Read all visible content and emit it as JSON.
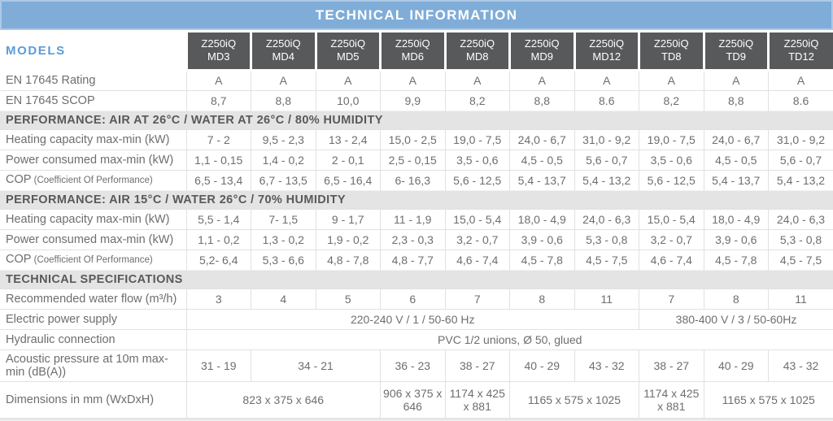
{
  "title": "TECHNICAL INFORMATION",
  "colors": {
    "title_bar_blue": "#7fadd8",
    "model_header_gray": "#58595b",
    "section_band_gray": "#e4e4e4",
    "models_label_blue": "#5b9cd5",
    "body_text_gray": "#6d6e70"
  },
  "table": {
    "models_label": "MODELS",
    "models": [
      {
        "line1": "Z250iQ",
        "line2": "MD3"
      },
      {
        "line1": "Z250iQ",
        "line2": "MD4"
      },
      {
        "line1": "Z250iQ",
        "line2": "MD5"
      },
      {
        "line1": "Z250iQ",
        "line2": "MD6"
      },
      {
        "line1": "Z250iQ",
        "line2": "MD8"
      },
      {
        "line1": "Z250iQ",
        "line2": "MD9"
      },
      {
        "line1": "Z250iQ",
        "line2": "MD12"
      },
      {
        "line1": "Z250iQ",
        "line2": "TD8"
      },
      {
        "line1": "Z250iQ",
        "line2": "TD9"
      },
      {
        "line1": "Z250iQ",
        "line2": "TD12"
      }
    ],
    "rows": [
      {
        "type": "data",
        "label": "EN 17645 Rating",
        "cells": [
          "A",
          "A",
          "A",
          "A",
          "A",
          "A",
          "A",
          "A",
          "A",
          "A"
        ]
      },
      {
        "type": "data",
        "label": "EN 17645 SCOP",
        "cells": [
          "8,7",
          "8,8",
          "10,0",
          "9,9",
          "8,2",
          "8,8",
          "8.6",
          "8,2",
          "8,8",
          "8.6"
        ]
      },
      {
        "type": "section",
        "label": "PERFORMANCE: AIR AT 26°C / WATER AT 26°C / 80% HUMIDITY"
      },
      {
        "type": "data",
        "label": "Heating capacity max-min (kW)",
        "cells": [
          "7 - 2",
          "9,5 - 2,3",
          "13 - 2,4",
          "15,0 - 2,5",
          "19,0 - 7,5",
          "24,0 - 6,7",
          "31,0 - 9,2",
          "19,0 - 7,5",
          "24,0 - 6,7",
          "31,0 - 9,2"
        ]
      },
      {
        "type": "data",
        "label": "Power consumed max-min (kW)",
        "cells": [
          "1,1 - 0,15",
          "1,4 - 0,2",
          "2 - 0,1",
          "2,5 - 0,15",
          "3,5 - 0,6",
          "4,5 - 0,5",
          "5,6 - 0,7",
          "3,5 - 0,6",
          "4,5 - 0,5",
          "5,6 - 0,7"
        ]
      },
      {
        "type": "data",
        "label": "COP",
        "label_small": "(Coefficient Of Performance)",
        "cells": [
          "6,5 - 13,4",
          "6,7 - 13,5",
          "6,5 - 16,4",
          "6- 16,3",
          "5,6 - 12,5",
          "5,4 - 13,7",
          "5,4 - 13,2",
          "5,6 - 12,5",
          "5,4 - 13,7",
          "5,4 - 13,2"
        ]
      },
      {
        "type": "section",
        "label": "PERFORMANCE: AIR 15°C / WATER 26°C / 70% HUMIDITY"
      },
      {
        "type": "data",
        "label": "Heating capacity max-min (kW)",
        "cells": [
          "5,5 - 1,4",
          "7- 1,5",
          "9 - 1,7",
          "11 - 1,9",
          "15,0 - 5,4",
          "18,0 - 4,9",
          "24,0 - 6,3",
          "15,0 - 5,4",
          "18,0 - 4,9",
          "24,0 - 6,3"
        ]
      },
      {
        "type": "data",
        "label": "Power consumed max-min (kW)",
        "cells": [
          "1,1 - 0,2",
          "1,3 - 0,2",
          "1,9 - 0,2",
          "2,3 - 0,3",
          "3,2 - 0,7",
          "3,9 - 0,6",
          "5,3 - 0,8",
          "3,2 - 0,7",
          "3,9 - 0,6",
          "5,3 - 0,8"
        ]
      },
      {
        "type": "data",
        "label": "COP",
        "label_small": "(Coefficient Of Performance)",
        "cells": [
          "5,2- 6,4",
          "5,3 - 6,6",
          "4,8 - 7,8",
          "4,8 - 7,7",
          "4,6 - 7,4",
          "4,5 - 7,8",
          "4,5 - 7,5",
          "4,6 - 7,4",
          "4,5 - 7,8",
          "4,5 - 7,5"
        ]
      },
      {
        "type": "section",
        "label": "TECHNICAL SPECIFICATIONS"
      },
      {
        "type": "data",
        "label": "Recommended water flow (m³/h)",
        "cells": [
          "3",
          "4",
          "5",
          "6",
          "7",
          "8",
          "11",
          "7",
          "8",
          "11"
        ]
      },
      {
        "type": "data",
        "label": "Electric power supply",
        "cells": [
          {
            "text": "220-240 V / 1 / 50-60 Hz",
            "span": 7
          },
          {
            "text": "380-400 V / 3 / 50-60Hz",
            "span": 3
          }
        ]
      },
      {
        "type": "data",
        "label": "Hydraulic connection",
        "cells": [
          {
            "text": "PVC 1/2 unions, Ø 50, glued",
            "span": 10
          }
        ]
      },
      {
        "type": "data",
        "label": "Acoustic pressure at 10m max-min (dB(A))",
        "cells": [
          "31 - 19",
          {
            "text": "34 - 21",
            "span": 2
          },
          "36 - 23",
          "38 - 27",
          "40 - 29",
          "43 - 32",
          "38 - 27",
          "40 - 29",
          "43 - 32"
        ]
      },
      {
        "type": "data",
        "label": "Dimensions in mm (WxDxH)",
        "cells": [
          {
            "text": "823 x 375 x 646",
            "span": 3
          },
          "906 x 375 x 646",
          "1174 x 425 x 881",
          {
            "text": "1165 x 575 x 1025",
            "span": 2
          },
          "1174 x 425 x 881",
          {
            "text": "1165 x 575 x 1025",
            "span": 2
          }
        ]
      }
    ]
  }
}
